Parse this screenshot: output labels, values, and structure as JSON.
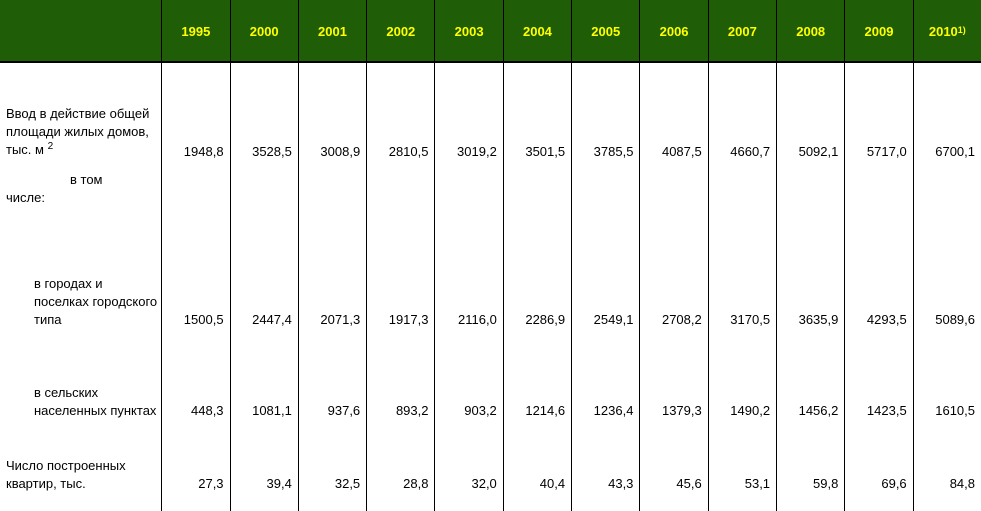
{
  "header": {
    "years": [
      "1995",
      "2000",
      "2001",
      "2002",
      "2003",
      "2004",
      "2005",
      "2006",
      "2007",
      "2008",
      "2009",
      "2010"
    ],
    "last_year_footnote": "1)"
  },
  "rows": [
    {
      "label": "Ввод в действие общей площади жилых домов, тыс. м",
      "label_sup": "2",
      "values": [
        "1948,8",
        "3528,5",
        "3008,9",
        "2810,5",
        "3019,2",
        "3501,5",
        "3785,5",
        "4087,5",
        "4660,7",
        "5092,1",
        "5717,0",
        "6700,1"
      ]
    },
    {
      "label_part1": "в том",
      "label_part2": "числе:"
    },
    {
      "label": "в городах и поселках городского типа",
      "values": [
        "1500,5",
        "2447,4",
        "2071,3",
        "1917,3",
        "2116,0",
        "2286,9",
        "2549,1",
        "2708,2",
        "3170,5",
        "3635,9",
        "4293,5",
        "5089,6"
      ]
    },
    {
      "label": "в сельских населенных пунктах",
      "values": [
        "448,3",
        "1081,1",
        "937,6",
        "893,2",
        "903,2",
        "1214,6",
        "1236,4",
        "1379,3",
        "1490,2",
        "1456,2",
        "1423,5",
        "1610,5"
      ]
    },
    {
      "label": "Число построенных квартир, тыс.",
      "values": [
        "27,3",
        "39,4",
        "32,5",
        "28,8",
        "32,0",
        "40,4",
        "43,3",
        "45,6",
        "53,1",
        "59,8",
        "69,6",
        "84,8"
      ]
    }
  ],
  "colors": {
    "header_bg": "#1f5e06",
    "header_text": "#ffff00"
  }
}
